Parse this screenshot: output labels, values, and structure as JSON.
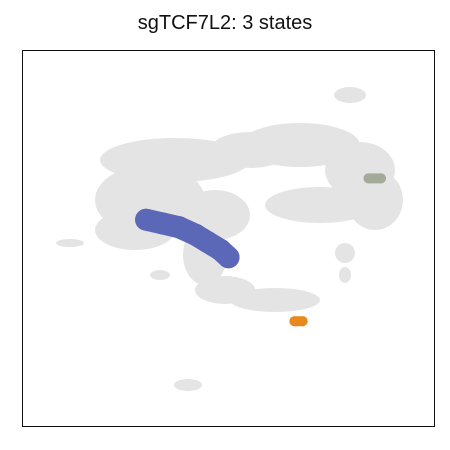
{
  "chart_data": {
    "type": "scatter",
    "title": "sgTCF7L2: 3 states",
    "xlabel": "",
    "ylabel": "",
    "axes_ticks": false,
    "grid": false,
    "legend": "none",
    "background_color": "#dcdcdc",
    "series": [
      {
        "color": "#5b68b8",
        "label_color": "blue",
        "points": [
          [
            0.3,
            0.45
          ],
          [
            0.34,
            0.46
          ],
          [
            0.38,
            0.47
          ],
          [
            0.42,
            0.49
          ],
          [
            0.45,
            0.51
          ],
          [
            0.48,
            0.53
          ],
          [
            0.5,
            0.55
          ]
        ]
      },
      {
        "color": "#e8891c",
        "label_color": "orange",
        "points": [
          [
            0.66,
            0.72
          ],
          [
            0.68,
            0.72
          ]
        ]
      },
      {
        "color": "#a3aa9a",
        "label_color": "gray-green",
        "points": [
          [
            0.84,
            0.34
          ],
          [
            0.87,
            0.34
          ]
        ]
      }
    ]
  }
}
